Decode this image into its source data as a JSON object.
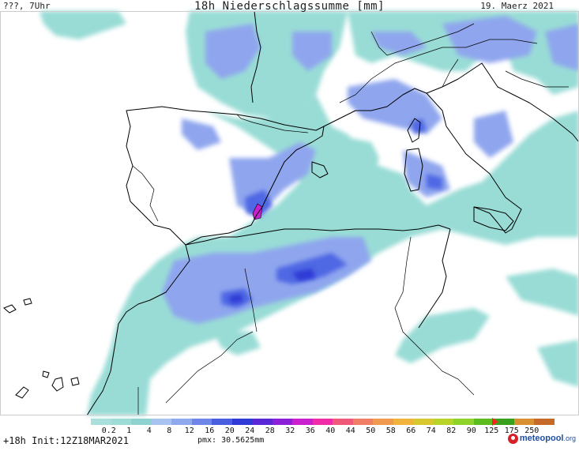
{
  "header": {
    "top_left": "???, 7Uhr",
    "title": "18h Niederschlagssumme [mm]",
    "date": "19. Maerz 2021"
  },
  "legend": {
    "values": [
      "0.2",
      "1",
      "4",
      "8",
      "12",
      "16",
      "20",
      "24",
      "28",
      "32",
      "36",
      "40",
      "44",
      "50",
      "58",
      "66",
      "74",
      "82",
      "90",
      "125",
      "175",
      "250"
    ],
    "colors": [
      "#a9e0dc",
      "#9edcd6",
      "#8fd2d2",
      "#a9c3f0",
      "#8ea9ee",
      "#6f86e8",
      "#4a5ee0",
      "#2f3ad6",
      "#5a27d6",
      "#8c1fd8",
      "#c81fcf",
      "#f02ba8",
      "#f05a7a",
      "#f07d66",
      "#f09a50",
      "#f0b43c",
      "#d8c830",
      "#b8d428",
      "#8ed22a",
      "#5cbc1e",
      "#38a01c",
      "#d99030",
      "#c56a28"
    ],
    "arrow_color": "#ff2020"
  },
  "footer": {
    "init": "+18h Init:12Z18MAR2021",
    "pmx": "pmx: 30.5625mm",
    "logo_name": "meteopool",
    "logo_tld": ".org"
  },
  "map": {
    "region": "Western Mediterranean, Iberian Peninsula, NW Africa",
    "colors": {
      "land": "#ffffff",
      "coast": "#000000",
      "light_precip": "#99dcd6",
      "moderate_precip": "#8fa6ee",
      "heavy_precip": "#3f4fdc",
      "max_precip": "#c81fcf"
    }
  }
}
